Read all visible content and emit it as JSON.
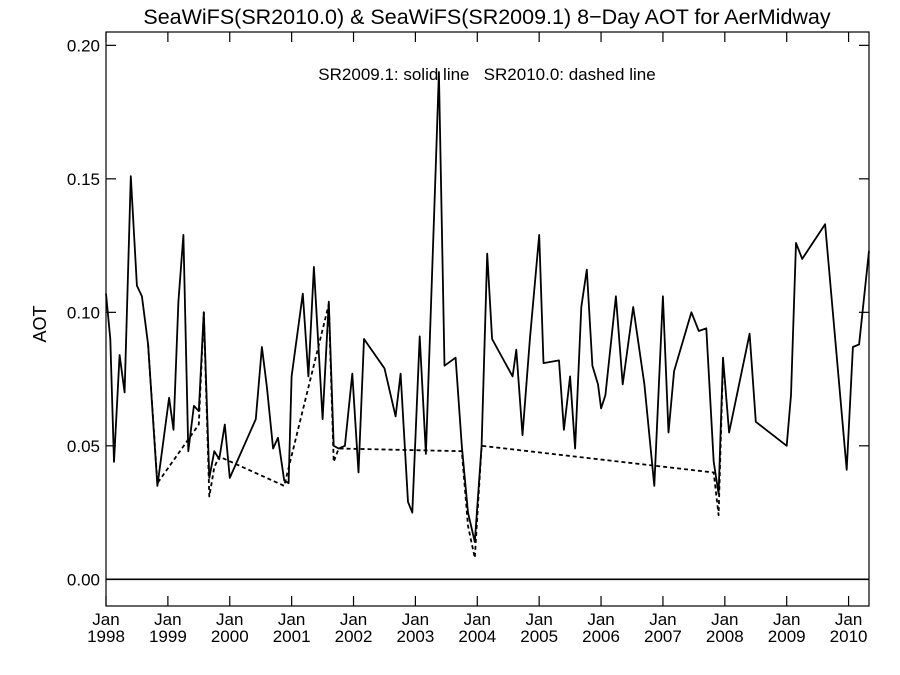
{
  "chart_data": {
    "type": "line",
    "title": "SeaWiFS(SR2010.0) & SeaWiFS(SR2009.1) 8−Day AOT for AerMidway",
    "annotation": "SR2009.1: solid line   SR2010.0: dashed line",
    "ylabel": "AOT",
    "xlabel": "",
    "xlim": [
      1998.0,
      2010.33
    ],
    "ylim": [
      -0.01,
      0.205
    ],
    "y_ticks": [
      0.0,
      0.05,
      0.1,
      0.15,
      0.2
    ],
    "y_tick_labels": [
      "0.00",
      "0.05",
      "0.10",
      "0.15",
      "0.20"
    ],
    "x_ticks": [
      1998,
      1999,
      2000,
      2001,
      2002,
      2003,
      2004,
      2005,
      2006,
      2007,
      2008,
      2009,
      2010
    ],
    "x_tick_month": "Jan",
    "x_tick_years": [
      "1998",
      "1999",
      "2000",
      "2001",
      "2002",
      "2003",
      "2004",
      "2005",
      "2006",
      "2007",
      "2008",
      "2009",
      "2010"
    ],
    "reference_line": 0.0,
    "series": [
      {
        "name": "SR2009.1",
        "style": "solid",
        "points": [
          [
            1998.0,
            0.107
          ],
          [
            1998.07,
            0.09
          ],
          [
            1998.13,
            0.044
          ],
          [
            1998.22,
            0.084
          ],
          [
            1998.3,
            0.07
          ],
          [
            1998.4,
            0.151
          ],
          [
            1998.5,
            0.11
          ],
          [
            1998.58,
            0.106
          ],
          [
            1998.68,
            0.088
          ],
          [
            1998.83,
            0.035
          ],
          [
            1999.02,
            0.068
          ],
          [
            1999.09,
            0.056
          ],
          [
            1999.17,
            0.104
          ],
          [
            1999.25,
            0.129
          ],
          [
            1999.33,
            0.048
          ],
          [
            1999.42,
            0.065
          ],
          [
            1999.5,
            0.063
          ],
          [
            1999.58,
            0.1
          ],
          [
            1999.67,
            0.038
          ],
          [
            1999.75,
            0.048
          ],
          [
            1999.83,
            0.045
          ],
          [
            1999.92,
            0.058
          ],
          [
            2000.0,
            0.038
          ],
          [
            2000.42,
            0.06
          ],
          [
            2000.52,
            0.087
          ],
          [
            2000.6,
            0.072
          ],
          [
            2000.7,
            0.049
          ],
          [
            2000.78,
            0.053
          ],
          [
            2000.88,
            0.037
          ],
          [
            2000.95,
            0.036
          ],
          [
            2001.0,
            0.076
          ],
          [
            2001.18,
            0.107
          ],
          [
            2001.27,
            0.076
          ],
          [
            2001.36,
            0.117
          ],
          [
            2001.5,
            0.06
          ],
          [
            2001.6,
            0.104
          ],
          [
            2001.68,
            0.05
          ],
          [
            2001.76,
            0.049
          ],
          [
            2001.86,
            0.05
          ],
          [
            2001.98,
            0.077
          ],
          [
            2002.08,
            0.04
          ],
          [
            2002.17,
            0.09
          ],
          [
            2002.5,
            0.079
          ],
          [
            2002.68,
            0.061
          ],
          [
            2002.76,
            0.077
          ],
          [
            2002.88,
            0.029
          ],
          [
            2002.95,
            0.025
          ],
          [
            2003.07,
            0.091
          ],
          [
            2003.17,
            0.047
          ],
          [
            2003.33,
            0.155
          ],
          [
            2003.38,
            0.19
          ],
          [
            2003.47,
            0.08
          ],
          [
            2003.65,
            0.083
          ],
          [
            2003.75,
            0.05
          ],
          [
            2003.85,
            0.025
          ],
          [
            2003.96,
            0.014
          ],
          [
            2004.07,
            0.05
          ],
          [
            2004.16,
            0.122
          ],
          [
            2004.24,
            0.09
          ],
          [
            2004.57,
            0.076
          ],
          [
            2004.63,
            0.086
          ],
          [
            2004.73,
            0.054
          ],
          [
            2004.85,
            0.09
          ],
          [
            2005.0,
            0.129
          ],
          [
            2005.07,
            0.081
          ],
          [
            2005.32,
            0.082
          ],
          [
            2005.4,
            0.056
          ],
          [
            2005.5,
            0.076
          ],
          [
            2005.58,
            0.049
          ],
          [
            2005.68,
            0.102
          ],
          [
            2005.77,
            0.116
          ],
          [
            2005.86,
            0.08
          ],
          [
            2005.95,
            0.073
          ],
          [
            2006.0,
            0.064
          ],
          [
            2006.07,
            0.069
          ],
          [
            2006.24,
            0.106
          ],
          [
            2006.35,
            0.073
          ],
          [
            2006.52,
            0.102
          ],
          [
            2006.7,
            0.073
          ],
          [
            2006.86,
            0.035
          ],
          [
            2007.0,
            0.106
          ],
          [
            2007.09,
            0.055
          ],
          [
            2007.18,
            0.078
          ],
          [
            2007.46,
            0.1
          ],
          [
            2007.58,
            0.093
          ],
          [
            2007.7,
            0.094
          ],
          [
            2007.82,
            0.044
          ],
          [
            2007.9,
            0.032
          ],
          [
            2007.97,
            0.083
          ],
          [
            2008.07,
            0.055
          ],
          [
            2008.4,
            0.092
          ],
          [
            2008.5,
            0.059
          ],
          [
            2009.0,
            0.05
          ],
          [
            2009.07,
            0.069
          ],
          [
            2009.15,
            0.126
          ],
          [
            2009.25,
            0.12
          ],
          [
            2009.62,
            0.133
          ],
          [
            2009.97,
            0.041
          ],
          [
            2010.07,
            0.087
          ],
          [
            2010.17,
            0.088
          ],
          [
            2010.33,
            0.123
          ]
        ]
      },
      {
        "name": "SR2010.0",
        "style": "dashed",
        "points": [
          [
            1998.68,
            0.088
          ],
          [
            1998.83,
            0.036
          ],
          [
            1999.5,
            0.058
          ],
          [
            1999.58,
            0.1
          ],
          [
            1999.67,
            0.031
          ],
          [
            1999.75,
            0.042
          ],
          [
            1999.83,
            0.046
          ],
          [
            2000.88,
            0.035
          ],
          [
            2001.6,
            0.103
          ],
          [
            2001.68,
            0.044
          ],
          [
            2001.76,
            0.049
          ],
          [
            2003.75,
            0.048
          ],
          [
            2003.85,
            0.02
          ],
          [
            2003.96,
            0.008
          ],
          [
            2004.07,
            0.05
          ],
          [
            2007.82,
            0.04
          ],
          [
            2007.9,
            0.024
          ],
          [
            2007.97,
            0.081
          ]
        ]
      }
    ]
  }
}
